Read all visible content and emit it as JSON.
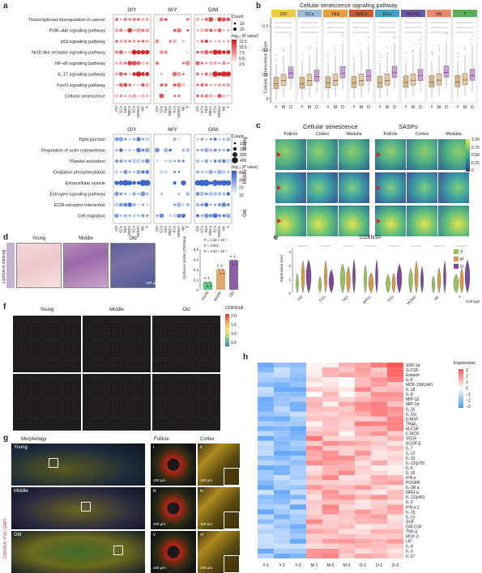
{
  "panels": {
    "a": "a",
    "b": "b",
    "c": "c",
    "d": "d",
    "e": "e",
    "f": "f",
    "g": "g",
    "h": "h"
  },
  "a": {
    "groups": [
      "O/Y",
      "M/Y",
      "O/M"
    ],
    "top_rows": [
      "Transcriptional misregulation in cancer",
      "PI3K–Akt signaling pathway",
      "p53 signaling pathway",
      "NOD-like receptor signaling pathway",
      "NF-κB signaling pathway",
      "IL-17 signaling pathway",
      "FoxO signaling pathway",
      "Cellular senescence"
    ],
    "bottom_rows": [
      "Tight junction",
      "Regulation of actin cytoskeleton",
      "Platelet activation",
      "Oxidative phosphorylation",
      "Extracellular vesicle",
      "Estrogen signaling pathway",
      "ECM–receptor interaction",
      "Cell migration"
    ],
    "cells": [
      "OO",
      "GCs",
      "T&S",
      "SMCs",
      "ECs",
      "MONO",
      "NK",
      "T"
    ],
    "legend_top": {
      "count_title": "Count",
      "count_values": [
        "10",
        "20"
      ],
      "p_title": "−log₁₀ (P value)",
      "p_values": [
        "12.5",
        "10.0",
        "7.5",
        "5.0",
        "2.5"
      ]
    },
    "legend_bottom": {
      "count_title": "Count",
      "count_values": [
        "100",
        "200",
        "300",
        "400"
      ],
      "p_title": "−log₁₀ (P value)",
      "p_values": [
        "40",
        "30",
        "20",
        "10"
      ]
    },
    "colors": {
      "up": "#d7191c",
      "down": "#2b57c8"
    }
  },
  "b": {
    "title": "Cellular senescence signaling pathway",
    "ylabel": "Cellular senescence score",
    "cell_types": [
      "OO",
      "GCs",
      "T&S",
      "SMCs",
      "ECs",
      "MONO",
      "NK",
      "T"
    ],
    "header_colors": [
      "#f0c93e",
      "#9bbcd9",
      "#f09a3c",
      "#c85a2c",
      "#3ba4c8",
      "#6c5aa8",
      "#f2876b",
      "#5aae55"
    ],
    "groups": [
      "Y",
      "M",
      "O"
    ],
    "yticks": [
      "0",
      "0.1",
      "0.2",
      "0.3"
    ]
  },
  "c": {
    "titles": [
      "Cellular senescence",
      "SASPs"
    ],
    "cols": [
      "Follicle",
      "Cortex",
      "Medulla",
      "Follicle",
      "Cortex",
      "Medulla"
    ],
    "rows": [
      "Young",
      "Middle",
      "Old"
    ],
    "scale": [
      "1.00",
      "0.75",
      "0.50",
      "0.25",
      "0"
    ]
  },
  "d": {
    "side_label": "Lipofuscin staining",
    "images": [
      "Young",
      "Middle",
      "Old"
    ],
    "scale": "100 μm",
    "ylabel": "Lipofuscin scores (IOD/area)",
    "groups": [
      "Young",
      "Middle",
      "Old"
    ],
    "pvals": [
      "P = 1.28 × 10⁻⁶",
      "P = 0.001",
      "P = 2.53 × 10⁻⁵"
    ],
    "yticks": [
      "0",
      "0.2",
      "0.4",
      "0.6",
      "0.8"
    ],
    "chart_data": {
      "type": "bar",
      "categories": [
        "Young",
        "Middle",
        "Old"
      ],
      "values": [
        0.15,
        0.4,
        0.58
      ],
      "ylim": [
        0,
        0.8
      ]
    }
  },
  "e": {
    "title": "CDKN1A",
    "ylabel": "Expression level",
    "xlabel": "Cell type",
    "cells": [
      "OO",
      "GCs",
      "T&S",
      "SMCs",
      "ECs",
      "MONO",
      "NK",
      "T"
    ],
    "legend": [
      "Y",
      "M",
      "O"
    ],
    "colors": {
      "Y": "#9ac25b",
      "M": "#d59a4c",
      "O": "#7b4a98"
    },
    "yticks": [
      "0",
      "1",
      "2",
      "3"
    ]
  },
  "f": {
    "cols": [
      "Young",
      "Middle",
      "Old"
    ],
    "legend_title": "CDKN1A",
    "legend_values": [
      "2.0",
      "1.5",
      "1.0",
      "0.5"
    ]
  },
  "g": {
    "headers": [
      "Morphology",
      "Follicle",
      "Cortex"
    ],
    "side_label": "CDKN1A / P16 / DAPI",
    "rows": [
      "Young",
      "Middle",
      "Old"
    ],
    "follicle_labels": [
      "i",
      "iii",
      "v"
    ],
    "cortex_labels": [
      "ii",
      "iv",
      "vi"
    ],
    "scales": [
      "100 μm",
      "100 μm",
      "200 μm",
      "100 μm",
      "100 μm",
      "100 μm"
    ]
  },
  "h": {
    "legend_title": "Expression",
    "legend_values": [
      "3",
      "2",
      "1",
      "0",
      "−1",
      "−2",
      "−3"
    ],
    "columns": [
      "Y-1",
      "Y-2",
      "Y-3",
      "M-1",
      "M-2",
      "M-3",
      "O-1",
      "O-2",
      "O-3"
    ],
    "rows": [
      "SDF-1α",
      "G-CSF",
      "Eotaxin",
      "IL-6",
      "MCP-1(MCAF)",
      "IL-18",
      "IL-8",
      "MIP-1β",
      "MIP-1α",
      "IL-16",
      "IL-1ra",
      "β-NGF",
      "TRAIL",
      "M-CSF",
      "CTACK",
      "VEGF",
      "SCGF-β",
      "IL-7",
      "IL-13",
      "IL-10",
      "IL-12(p70)",
      "IL-5",
      "IL-15",
      "IFN-γ",
      "PDGFB",
      "IL-2R α",
      "GRO-α",
      "IL-12(p40)",
      "IL-2",
      "IFN-α 2",
      "IL-1β",
      "IL-1α",
      "SCF",
      "GM-CSF",
      "TNF-α",
      "MCP-3",
      "LIF",
      "IL-4",
      "IL-3",
      "IL-17"
    ]
  }
}
